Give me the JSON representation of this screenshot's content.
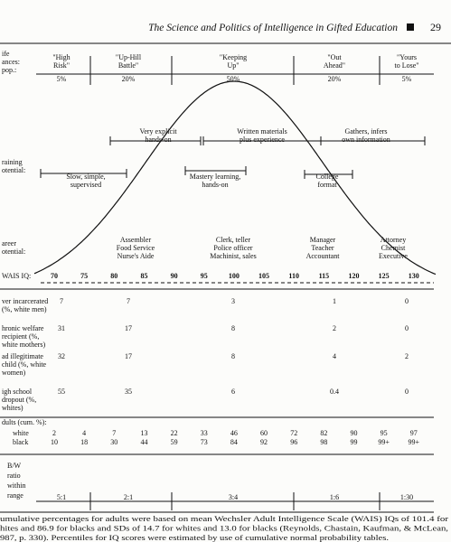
{
  "header": {
    "title": "The Science and Politics of Intelligence in Gifted Education",
    "page": "29"
  },
  "figure": {
    "life_chances": {
      "label": [
        "ife",
        "ances:",
        "pop.:"
      ],
      "groups": [
        {
          "name": [
            "\"High",
            "Risk\""
          ],
          "pct": "5%"
        },
        {
          "name": [
            "\"Up-Hill",
            "Battle\""
          ],
          "pct": "20%"
        },
        {
          "name": [
            "\"Keeping",
            "Up\""
          ],
          "pct": "50%"
        },
        {
          "name": [
            "\"Out",
            "Ahead\""
          ],
          "pct": "20%"
        },
        {
          "name": [
            "\"Yours",
            "to Lose\""
          ],
          "pct": "5%"
        }
      ]
    },
    "training": {
      "label": [
        "raining",
        "otential:"
      ],
      "items": [
        {
          "lines": [
            "Very explicit",
            "hands-on"
          ]
        },
        {
          "lines": [
            "Written materials",
            "plus experience"
          ]
        },
        {
          "lines": [
            "Gathers, infers",
            "own information"
          ]
        },
        {
          "lines": [
            "Slow, simple,",
            "supervised"
          ]
        },
        {
          "lines": [
            "Mastery learning,",
            "hands-on"
          ]
        },
        {
          "lines": [
            "College",
            "format"
          ]
        }
      ]
    },
    "career": {
      "label": [
        "areer",
        "otential:"
      ],
      "items": [
        {
          "lines": [
            "Assembler",
            "Food Service",
            "Nurse's Aide"
          ]
        },
        {
          "lines": [
            "Clerk, teller",
            "Police officer",
            "Machinist, sales"
          ]
        },
        {
          "lines": [
            "Manager",
            "Teacher",
            "Accountant"
          ]
        },
        {
          "lines": [
            "Attorney",
            "Chemist",
            "Executive"
          ]
        }
      ]
    },
    "iq_axis": {
      "label": "WAIS IQ:",
      "ticks": [
        70,
        75,
        80,
        85,
        90,
        95,
        100,
        105,
        110,
        115,
        120,
        125,
        130
      ]
    },
    "outcomes": [
      {
        "label": [
          "ver incarcerated",
          "(%, white men)"
        ],
        "values": [
          7,
          7,
          3,
          1,
          0
        ]
      },
      {
        "label": [
          "hronic welfare",
          "recipient (%,",
          "white mothers)"
        ],
        "values": [
          31,
          17,
          8,
          2,
          0
        ]
      },
      {
        "label": [
          "ad illegitimate",
          "child (%, white",
          "women)"
        ],
        "values": [
          32,
          17,
          8,
          4,
          2
        ]
      },
      {
        "label": [
          "igh school",
          "dropout (%,",
          "whites)"
        ],
        "values": [
          55,
          35,
          6,
          0.4,
          0
        ]
      }
    ],
    "adults": {
      "label": "dults (cum. %):",
      "white": {
        "label": "white",
        "values": [
          2,
          4,
          7,
          13,
          22,
          33,
          46,
          60,
          72,
          82,
          90,
          95,
          97
        ]
      },
      "black": {
        "label": "black",
        "values": [
          10,
          18,
          30,
          44,
          59,
          73,
          84,
          92,
          96,
          98,
          99,
          "99+",
          "99+"
        ]
      }
    },
    "ratio": {
      "label": [
        "B/W",
        "ratio",
        "within",
        "range"
      ],
      "values": [
        "5:1",
        "2:1",
        "3:4",
        "1:6",
        "1:30"
      ]
    }
  },
  "footnote": [
    "umulative percentages for adults were based on mean Wechsler Adult Intelligence Scale (WAIS) IQs of 101.4 for",
    "hites and 86.9 for blacks and SDs of 14.7 for whites and 13.0 for blacks (Reynolds, Chastain, Kaufman, & McLean,",
    "987, p. 330). Percentiles for IQ scores were estimated by use of cumulative normal probability tables."
  ]
}
